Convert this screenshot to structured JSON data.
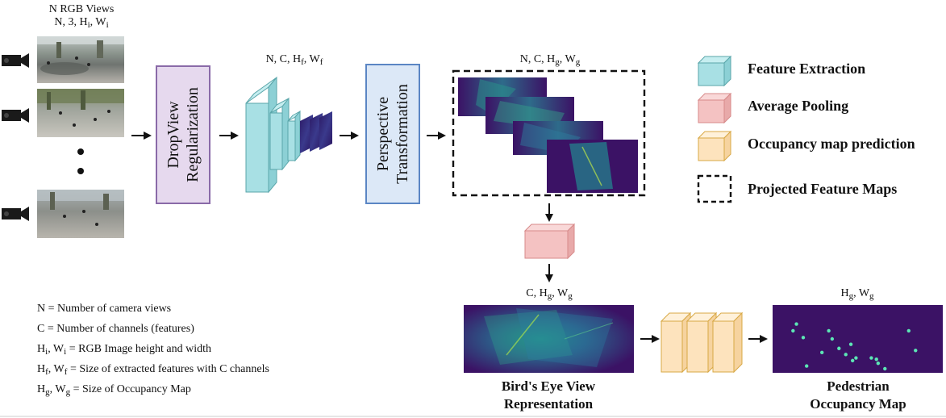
{
  "input": {
    "title": "N RGB Views",
    "shape": {
      "text": "N, 3, H",
      "sub1": "i",
      "mid": ", W",
      "sub2": "i"
    },
    "ellipsis": "•\n•"
  },
  "stages": {
    "dropview": {
      "line1": "DropView",
      "line2": "Regularization"
    },
    "perspective": {
      "line1": "Perspective",
      "line2": "Transformation"
    }
  },
  "shapes": {
    "features": {
      "text": "N, C, H",
      "sub1": "f",
      "mid": ", W",
      "sub2": "f"
    },
    "projected": {
      "text": "N, C, H",
      "sub1": "g",
      "mid": ", W",
      "sub2": "g"
    },
    "bev": {
      "text": "C, H",
      "sub1": "g",
      "mid": ", W",
      "sub2": "g"
    },
    "occupancy": {
      "text": "H",
      "sub1": "g",
      "mid": ", W",
      "sub2": "g"
    }
  },
  "legend": {
    "feature_extraction": {
      "label": "Feature Extraction",
      "color": "#a8e0e4"
    },
    "average_pooling": {
      "label": "Average Pooling",
      "color": "#f4c2c2"
    },
    "occupancy_prediction": {
      "label": "Occupancy map prediction",
      "color": "#fde3bd"
    },
    "projected_maps": {
      "label": "Projected Feature Maps"
    }
  },
  "notes": [
    {
      "a": "N",
      "asub": "",
      "b": "",
      "bsub": "",
      "rest": " = Number of camera views"
    },
    {
      "a": "C",
      "asub": "",
      "b": "",
      "bsub": "",
      "rest": " = Number of channels (features)"
    },
    {
      "a": "H",
      "asub": "i",
      "b": ", W",
      "bsub": "i",
      "rest": " = RGB Image height and width"
    },
    {
      "a": "H",
      "asub": "f",
      "b": ", W",
      "bsub": "f",
      "rest": " = Size of extracted features with C channels"
    },
    {
      "a": "H",
      "asub": "g",
      "b": ", W",
      "bsub": "g",
      "rest": " = Size of Occupancy Map"
    }
  ],
  "captions": {
    "bev": {
      "line1": "Bird's Eye View",
      "line2": "Representation"
    },
    "occupancy": {
      "line1": "Pedestrian",
      "line2": "Occupancy Map"
    }
  },
  "colors": {
    "dropview_fill": "#e6d9ee",
    "dropview_border": "#8a6aa8",
    "perspective_fill": "#dce8f7",
    "perspective_border": "#5b86c4",
    "feature_dark": "#3b1a6b",
    "heatmap_bg": "#3b1265",
    "pedestrian": "#5ce6b5"
  },
  "pedestrians": [
    [
      0.14,
      0.28
    ],
    [
      0.12,
      0.38
    ],
    [
      0.33,
      0.38
    ],
    [
      0.35,
      0.5
    ],
    [
      0.29,
      0.7
    ],
    [
      0.39,
      0.64
    ],
    [
      0.46,
      0.58
    ],
    [
      0.43,
      0.73
    ],
    [
      0.49,
      0.78
    ],
    [
      0.47,
      0.82
    ],
    [
      0.58,
      0.78
    ],
    [
      0.61,
      0.8
    ],
    [
      0.62,
      0.86
    ],
    [
      0.66,
      0.94
    ],
    [
      0.8,
      0.38
    ],
    [
      0.84,
      0.67
    ],
    [
      0.2,
      0.9
    ],
    [
      0.18,
      0.48
    ]
  ]
}
